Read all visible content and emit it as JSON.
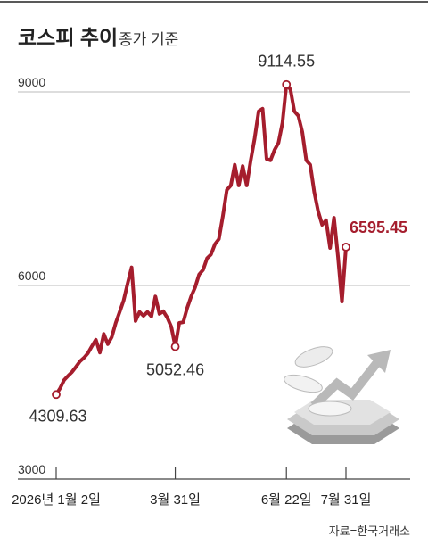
{
  "chart_data": {
    "type": "line",
    "title": "코스피 추이",
    "subtitle": "종가 기준",
    "source": "자료=한국거래소",
    "categories": [
      "2026년 1월 2일",
      null,
      null,
      null,
      null,
      null,
      null,
      null,
      null,
      null,
      null,
      null,
      null,
      null,
      null,
      null,
      null,
      null,
      null,
      null,
      null,
      null,
      null,
      null,
      null,
      null,
      null,
      null,
      null,
      null,
      "3월 31일",
      null,
      null,
      null,
      null,
      null,
      null,
      null,
      null,
      null,
      null,
      null,
      null,
      null,
      null,
      null,
      null,
      null,
      null,
      null,
      null,
      null,
      null,
      null,
      null,
      null,
      null,
      null,
      "6월 22일",
      null,
      null,
      null,
      null,
      null,
      null,
      null,
      null,
      null,
      null,
      null,
      null,
      null,
      null,
      "7월 31일"
    ],
    "values": [
      4309.63,
      4410,
      4535,
      4600,
      4660,
      4740,
      4825,
      4880,
      4950,
      5060,
      5160,
      4960,
      5250,
      5090,
      5200,
      5420,
      5590,
      5770,
      6030,
      6280,
      5450,
      5590,
      5530,
      5590,
      5520,
      5830,
      5560,
      5600,
      5500,
      5360,
      5052.46,
      5420,
      5430,
      5650,
      5830,
      5970,
      6170,
      6240,
      6420,
      6480,
      6640,
      6720,
      7080,
      7480,
      7550,
      7870,
      7550,
      7850,
      7550,
      7940,
      8280,
      8700,
      8740,
      7960,
      7940,
      8100,
      8210,
      8520,
      9114.55,
      9040,
      8700,
      8630,
      8380,
      7940,
      7870,
      7450,
      7150,
      6940,
      7010,
      6580,
      7050,
      6440,
      5750,
      6595.45
    ],
    "color": "#a51d2d",
    "ylim": [
      3000,
      9300
    ],
    "yticks": [
      3000,
      6000,
      9000
    ],
    "grid": true
  }
}
